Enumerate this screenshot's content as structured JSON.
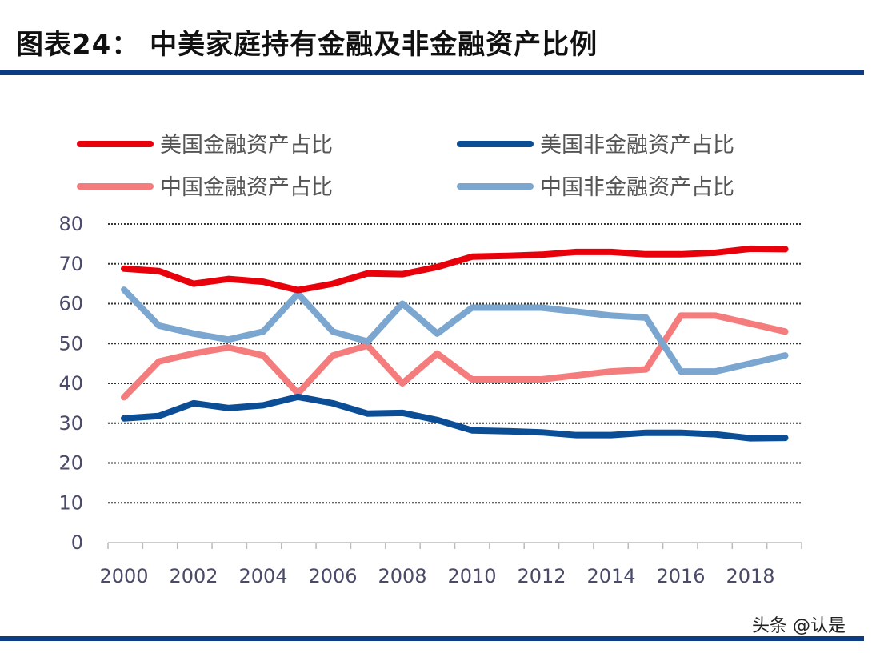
{
  "title": "图表24： 中美家庭持有金融及非金融资产比例",
  "watermark": "头条 @认是",
  "chart_data": {
    "type": "line",
    "x": [
      2000,
      2001,
      2002,
      2003,
      2004,
      2005,
      2006,
      2007,
      2008,
      2009,
      2010,
      2011,
      2012,
      2013,
      2014,
      2015,
      2016,
      2017,
      2018,
      2019
    ],
    "x_tick_labels": [
      "2000",
      "2002",
      "2004",
      "2006",
      "2008",
      "2010",
      "2012",
      "2014",
      "2016",
      "2018"
    ],
    "y_tick_labels": [
      "0",
      "10",
      "20",
      "30",
      "40",
      "50",
      "60",
      "70",
      "80"
    ],
    "ylim": [
      0,
      80
    ],
    "grid": "horizontal dotted",
    "legend_placement": "top",
    "series": [
      {
        "name": "美国金融资产占比",
        "color": "#e8000b",
        "values": [
          68.8,
          68.2,
          65,
          66.2,
          65.5,
          63.4,
          65,
          67.6,
          67.4,
          69.2,
          71.8,
          72,
          72.3,
          73,
          73,
          72.4,
          72.4,
          72.8,
          73.8,
          73.7
        ]
      },
      {
        "name": "美国非金融资产占比",
        "color": "#0b4e96",
        "values": [
          31.2,
          31.8,
          35,
          33.8,
          34.5,
          36.6,
          35,
          32.4,
          32.6,
          30.8,
          28.2,
          28,
          27.7,
          27,
          27,
          27.6,
          27.6,
          27.2,
          26.2,
          26.3
        ]
      },
      {
        "name": "中国金融资产占比",
        "color": "#f47c7c",
        "values": [
          36.5,
          45.5,
          47.5,
          49,
          47,
          37.5,
          47,
          49.5,
          40,
          47.5,
          41,
          41,
          41,
          42,
          43,
          43.5,
          57,
          57,
          55,
          53
        ]
      },
      {
        "name": "中国非金融资产占比",
        "color": "#7aa6cf",
        "values": [
          63.5,
          54.5,
          52.5,
          51,
          53,
          62.5,
          53,
          50.5,
          60,
          52.5,
          59,
          59,
          59,
          58,
          57,
          56.5,
          43,
          43,
          45,
          47
        ]
      }
    ]
  }
}
